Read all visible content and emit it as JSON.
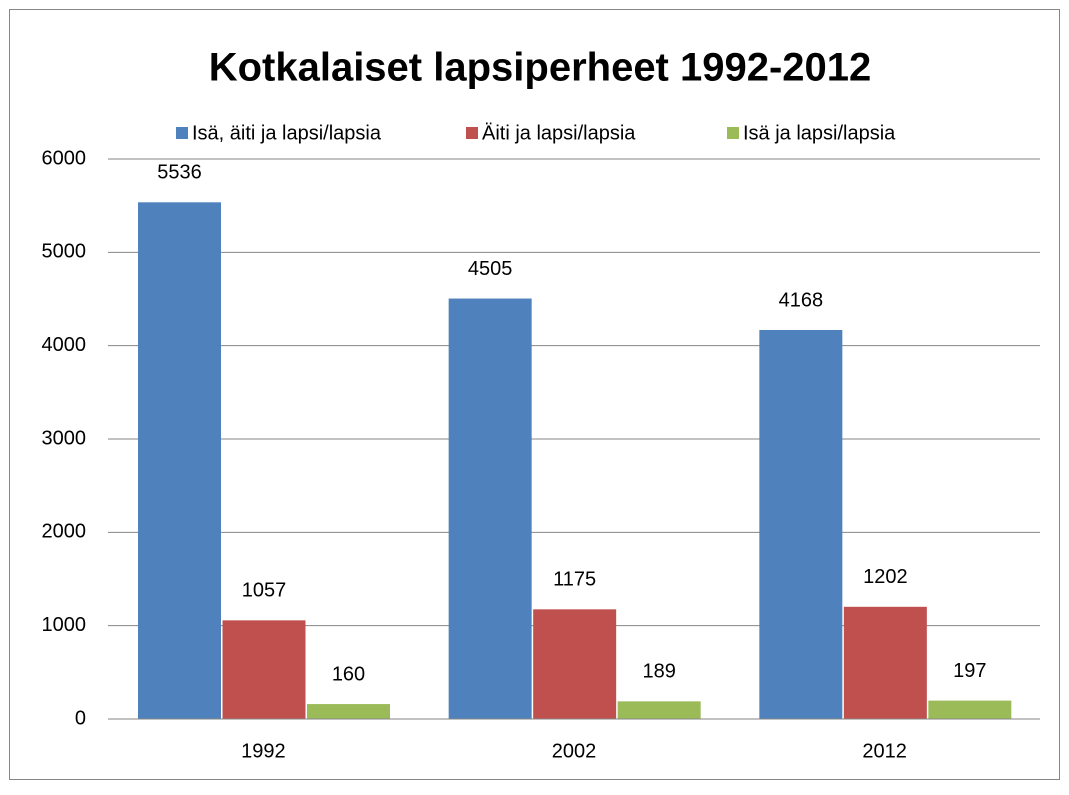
{
  "chart_data": {
    "type": "bar",
    "title": "Kotkalaiset lapsiperheet 1992-2012",
    "categories": [
      "1992",
      "2002",
      "2012"
    ],
    "series": [
      {
        "name": "Isä, äiti ja lapsi/lapsia",
        "color": "#4f81bd",
        "values": [
          5536,
          4505,
          4168
        ]
      },
      {
        "name": "Äiti ja lapsi/lapsia",
        "color": "#c0504d",
        "values": [
          1057,
          1175,
          1202
        ]
      },
      {
        "name": "Isä ja lapsi/lapsia",
        "color": "#9bbb59",
        "values": [
          160,
          189,
          197
        ]
      }
    ],
    "ylim": [
      0,
      6000
    ],
    "yticks": [
      0,
      1000,
      2000,
      3000,
      4000,
      5000,
      6000
    ],
    "grid": true,
    "legend": "top"
  }
}
